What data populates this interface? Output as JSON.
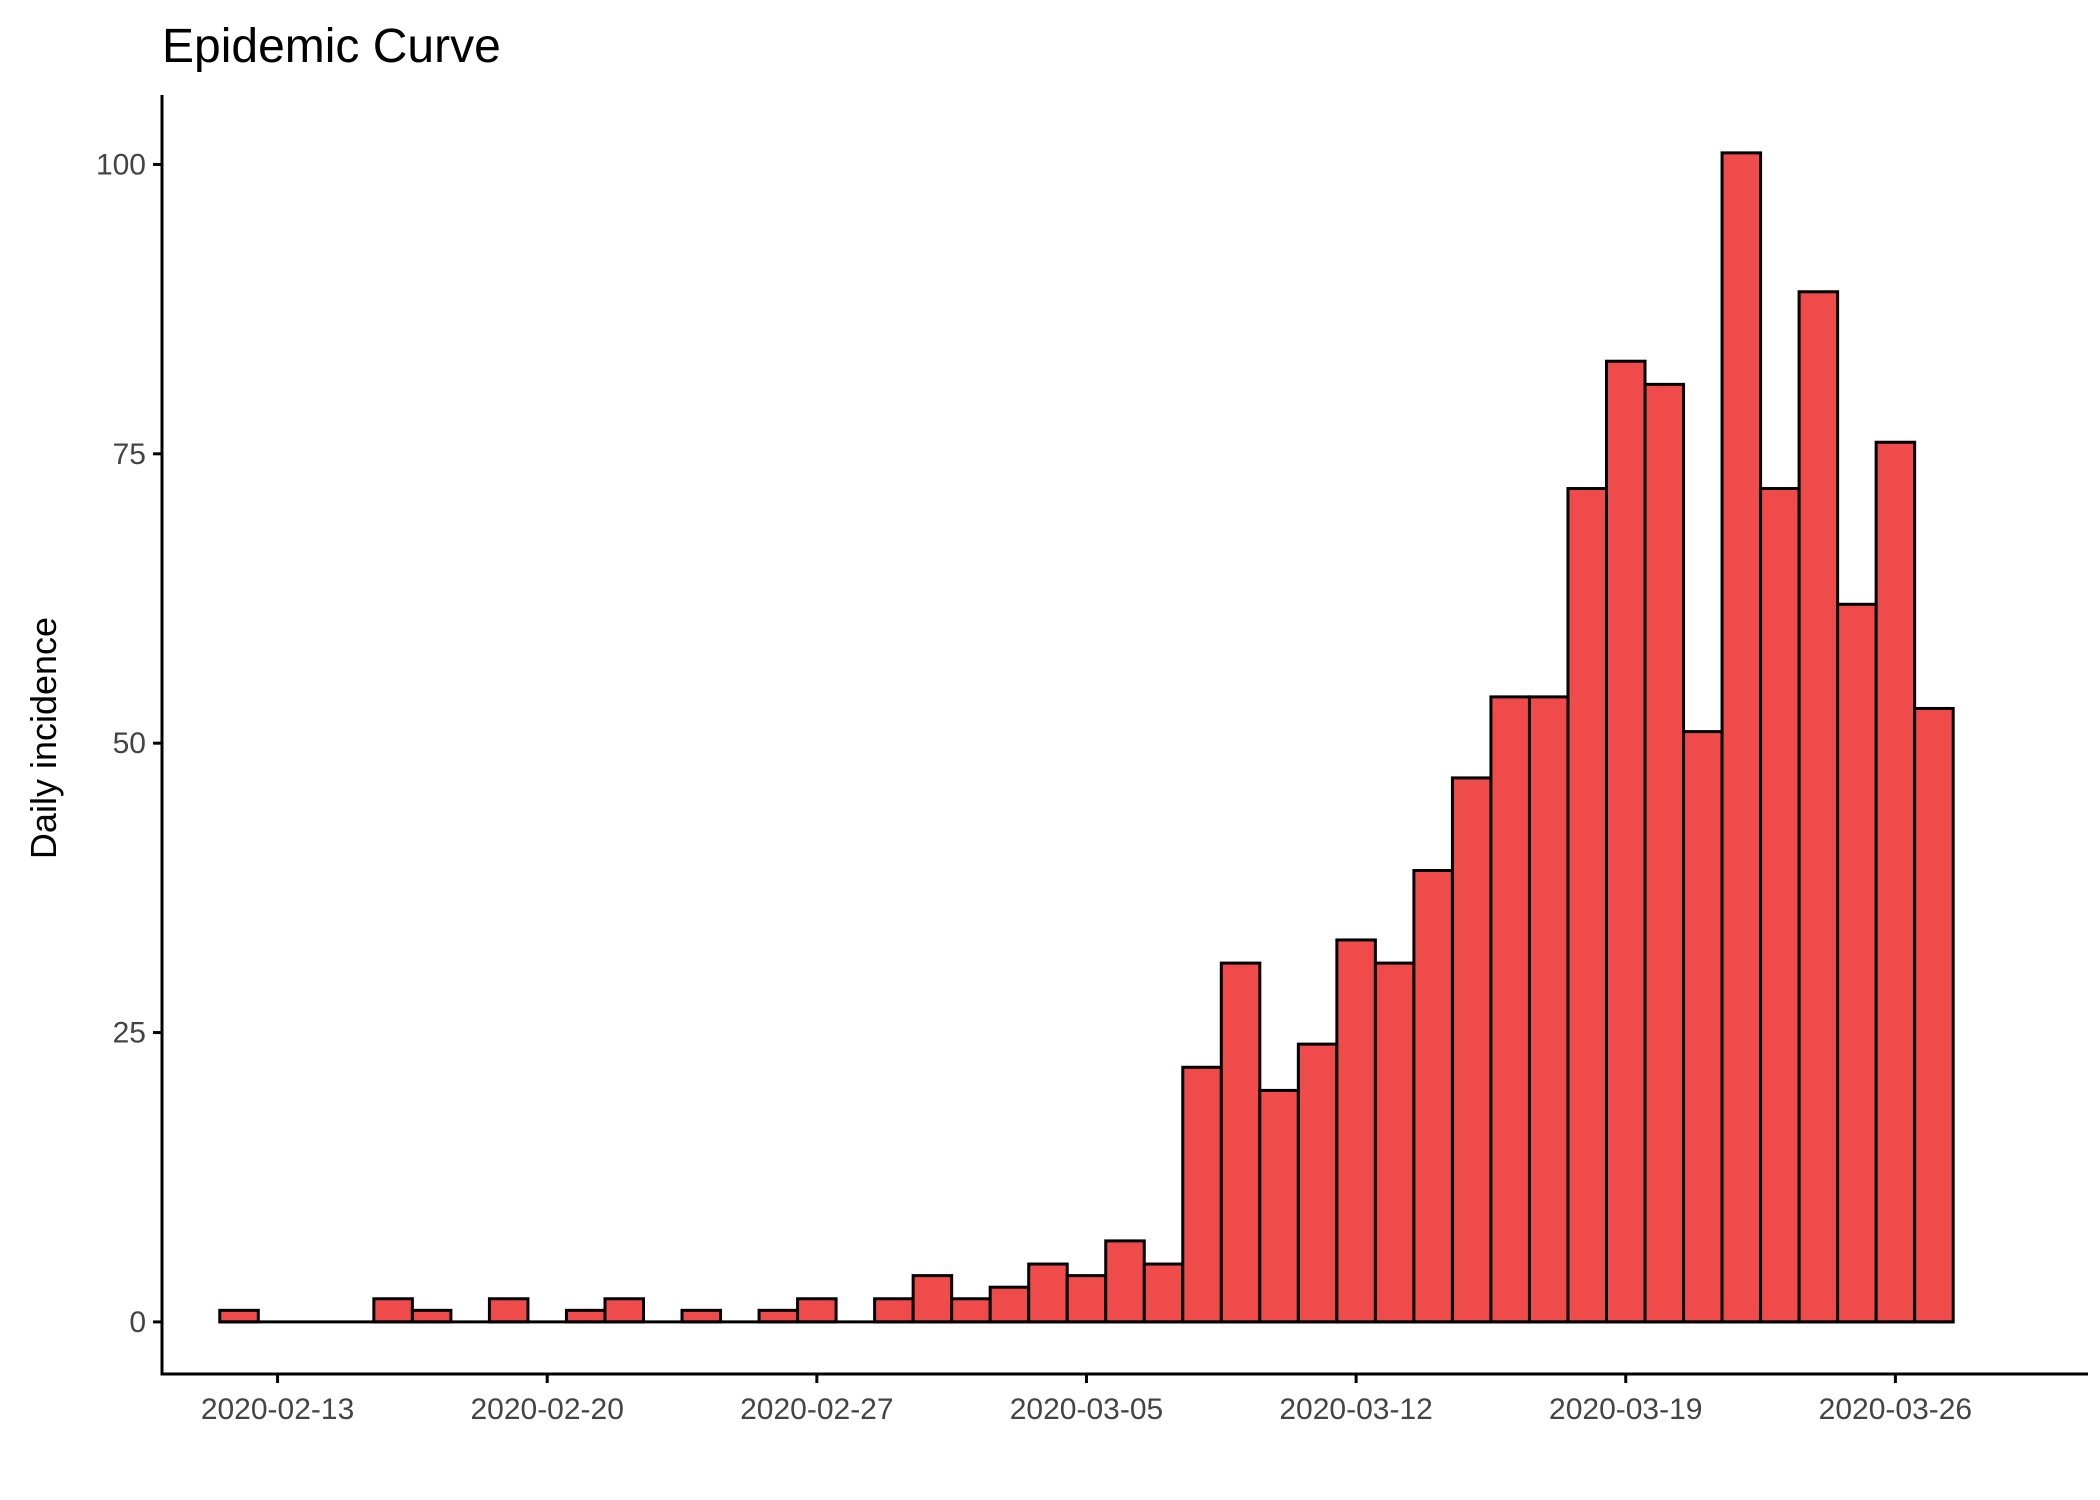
{
  "chart_data": {
    "type": "bar",
    "title": "Epidemic Curve",
    "xlabel": "",
    "ylabel": "Daily incidence",
    "x": [
      "2020-02-12",
      "2020-02-13",
      "2020-02-14",
      "2020-02-15",
      "2020-02-16",
      "2020-02-17",
      "2020-02-18",
      "2020-02-19",
      "2020-02-20",
      "2020-02-21",
      "2020-02-22",
      "2020-02-23",
      "2020-02-24",
      "2020-02-25",
      "2020-02-26",
      "2020-02-27",
      "2020-02-28",
      "2020-02-29",
      "2020-03-01",
      "2020-03-02",
      "2020-03-03",
      "2020-03-04",
      "2020-03-05",
      "2020-03-06",
      "2020-03-07",
      "2020-03-08",
      "2020-03-09",
      "2020-03-10",
      "2020-03-11",
      "2020-03-12",
      "2020-03-13",
      "2020-03-14",
      "2020-03-15",
      "2020-03-16",
      "2020-03-17",
      "2020-03-18",
      "2020-03-19",
      "2020-03-20",
      "2020-03-21",
      "2020-03-22",
      "2020-03-23",
      "2020-03-24",
      "2020-03-25",
      "2020-03-26",
      "2020-03-27"
    ],
    "values": [
      1,
      0,
      0,
      0,
      2,
      1,
      0,
      2,
      0,
      1,
      2,
      0,
      1,
      0,
      1,
      2,
      0,
      2,
      4,
      2,
      3,
      5,
      4,
      7,
      5,
      22,
      31,
      20,
      24,
      33,
      31,
      39,
      47,
      54,
      54,
      72,
      83,
      81,
      51,
      101,
      72,
      89,
      62,
      76,
      53
    ],
    "xticks": [
      "2020-02-13",
      "2020-02-20",
      "2020-02-27",
      "2020-03-05",
      "2020-03-12",
      "2020-03-19",
      "2020-03-26"
    ],
    "yticks": [
      0,
      25,
      50,
      75,
      100
    ],
    "xlim": [
      "2020-02-10",
      "2020-03-31"
    ],
    "ylim": [
      -4.5,
      106
    ],
    "grid": false,
    "colors": {
      "bar_fill": "#F04B4B",
      "bar_stroke": "#000000"
    }
  }
}
